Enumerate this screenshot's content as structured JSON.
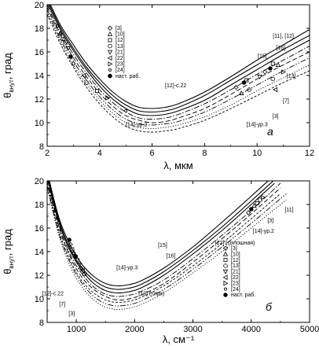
{
  "chart_data": [
    {
      "type": "line",
      "panel_label": "a",
      "xlabel": "λ, мкм",
      "ylabel_main": "θ",
      "ylabel_sub": "внут",
      "ylabel_unit": ", град",
      "xlim": [
        2,
        12
      ],
      "ylim": [
        8,
        20
      ],
      "xticks": [
        2,
        4,
        6,
        8,
        10,
        12
      ],
      "yticks": [
        8,
        10,
        12,
        14,
        16,
        18,
        20
      ],
      "legend_position": "top-left",
      "legend": [
        {
          "label": "[3]",
          "marker": "diamond"
        },
        {
          "label": "[10]",
          "marker": "triangle-up"
        },
        {
          "label": "[12]",
          "marker": "square"
        },
        {
          "label": "[13]",
          "marker": "circle"
        },
        {
          "label": "[21]",
          "marker": "triangle-down"
        },
        {
          "label": "[22]",
          "marker": "triangle-left"
        },
        {
          "label": "[23]",
          "marker": "triangle-right"
        },
        {
          "label": "[24]",
          "marker": "circle-small"
        },
        {
          "label": "наст. раб.",
          "marker": "filled-circle"
        }
      ],
      "series": [
        {
          "id": "c11",
          "style": "solid",
          "x": [
            2.0,
            2.5,
            3.0,
            3.5,
            4.0,
            4.5,
            5.0,
            5.5,
            6.0,
            6.5,
            7.0,
            8.0,
            9.0,
            10.0,
            11.0,
            12.0
          ],
          "y": [
            20.6,
            18.3,
            16.6,
            15.0,
            13.7,
            12.6,
            11.8,
            11.3,
            11.2,
            11.3,
            11.6,
            12.6,
            13.9,
            15.3,
            16.6,
            17.9
          ]
        },
        {
          "id": "c16",
          "style": "solid",
          "x": [
            2.0,
            2.5,
            3.0,
            3.5,
            4.0,
            4.5,
            5.0,
            5.5,
            6.0,
            6.5,
            7.0,
            8.0,
            9.0,
            10.0,
            11.0,
            12.0
          ],
          "y": [
            20.4,
            18.1,
            16.3,
            14.7,
            13.4,
            12.3,
            11.5,
            11.0,
            10.9,
            11.0,
            11.3,
            12.3,
            13.6,
            14.9,
            16.2,
            17.4
          ]
        },
        {
          "id": "c15",
          "style": "solid",
          "x": [
            2.0,
            2.5,
            3.0,
            3.5,
            4.0,
            4.5,
            5.0,
            5.5,
            6.0,
            6.5,
            7.0,
            8.0,
            9.0,
            10.0,
            11.0,
            12.0
          ],
          "y": [
            20.2,
            17.9,
            16.1,
            14.5,
            13.1,
            12.0,
            11.2,
            10.7,
            10.6,
            10.7,
            11.0,
            11.9,
            13.2,
            14.5,
            15.8,
            17.0
          ]
        },
        {
          "id": "c12",
          "style": "dashdot",
          "x": [
            2.0,
            2.5,
            3.0,
            3.5,
            4.0,
            4.5,
            5.0,
            5.5,
            6.0,
            6.5,
            7.0,
            8.0,
            9.0,
            10.0,
            11.0,
            12.0
          ],
          "y": [
            20.0,
            17.6,
            15.8,
            14.2,
            12.8,
            11.7,
            10.9,
            10.4,
            10.3,
            10.4,
            10.7,
            11.6,
            12.8,
            14.1,
            15.3,
            16.5
          ]
        },
        {
          "id": "c13",
          "style": "dashed",
          "x": [
            2.0,
            2.5,
            3.0,
            3.5,
            4.0,
            4.5,
            5.0,
            5.5,
            6.0,
            6.5,
            7.0,
            8.0,
            9.0,
            10.0,
            11.0,
            12.0
          ],
          "y": [
            19.8,
            17.4,
            15.5,
            13.9,
            12.5,
            11.4,
            10.6,
            10.2,
            10.0,
            10.1,
            10.4,
            11.2,
            12.4,
            13.7,
            14.9,
            16.0
          ]
        },
        {
          "id": "c7",
          "style": "dashdotdot",
          "x": [
            2.0,
            2.5,
            3.0,
            3.5,
            4.0,
            4.5,
            5.0,
            5.5,
            6.0,
            6.5,
            7.0,
            8.0,
            9.0,
            10.0,
            11.0,
            12.0
          ],
          "y": [
            19.6,
            17.1,
            15.2,
            13.6,
            12.2,
            11.1,
            10.3,
            9.9,
            9.8,
            9.9,
            10.1,
            10.9,
            12.0,
            13.2,
            14.4,
            15.5
          ]
        },
        {
          "id": "c3",
          "style": "dotted",
          "x": [
            2.0,
            2.5,
            3.0,
            3.5,
            4.0,
            4.5,
            5.0,
            5.5,
            6.0,
            6.5,
            7.0,
            8.0,
            9.0,
            10.0,
            11.0,
            12.0
          ],
          "y": [
            19.4,
            16.9,
            14.9,
            13.3,
            11.9,
            10.8,
            10.0,
            9.6,
            9.5,
            9.6,
            9.8,
            10.5,
            11.5,
            12.7,
            13.8,
            14.9
          ]
        },
        {
          "id": "c14",
          "style": "dashed-short",
          "x": [
            2.0,
            2.5,
            3.0,
            3.5,
            4.0,
            4.5,
            5.0,
            5.5,
            6.0,
            6.5,
            7.0,
            8.0,
            9.0,
            10.0,
            11.0,
            12.0
          ],
          "y": [
            19.2,
            16.7,
            14.7,
            13.0,
            11.6,
            10.5,
            9.7,
            9.3,
            9.2,
            9.3,
            9.5,
            10.2,
            11.2,
            12.3,
            13.4,
            14.4
          ]
        }
      ],
      "points": [
        {
          "x": 2.4,
          "y": 18.2,
          "m": "diamond"
        },
        {
          "x": 2.5,
          "y": 17.6,
          "m": "triangle-up"
        },
        {
          "x": 2.6,
          "y": 17.1,
          "m": "square"
        },
        {
          "x": 2.7,
          "y": 16.8,
          "m": "circle"
        },
        {
          "x": 2.8,
          "y": 16.3,
          "m": "triangle-down"
        },
        {
          "x": 2.9,
          "y": 15.6,
          "m": "filled-circle"
        },
        {
          "x": 3.0,
          "y": 15.0,
          "m": "diamond"
        },
        {
          "x": 3.4,
          "y": 14.0,
          "m": "triangle-left"
        },
        {
          "x": 3.5,
          "y": 13.4,
          "m": "circle"
        },
        {
          "x": 3.9,
          "y": 12.7,
          "m": "square"
        },
        {
          "x": 4.3,
          "y": 12.1,
          "m": "triangle-right"
        },
        {
          "x": 5.0,
          "y": 11.0,
          "m": "circle-small"
        },
        {
          "x": 9.2,
          "y": 13.0,
          "m": "diamond"
        },
        {
          "x": 9.4,
          "y": 12.5,
          "m": "triangle-up"
        },
        {
          "x": 9.5,
          "y": 13.4,
          "m": "filled-circle"
        },
        {
          "x": 9.6,
          "y": 13.6,
          "m": "square"
        },
        {
          "x": 9.7,
          "y": 12.8,
          "m": "circle"
        },
        {
          "x": 10.1,
          "y": 13.9,
          "m": "triangle-down"
        },
        {
          "x": 10.3,
          "y": 14.3,
          "m": "diamond"
        },
        {
          "x": 10.5,
          "y": 14.6,
          "m": "filled-circle"
        },
        {
          "x": 10.6,
          "y": 15.0,
          "m": "square"
        },
        {
          "x": 10.6,
          "y": 13.7,
          "m": "circle"
        },
        {
          "x": 10.7,
          "y": 12.8,
          "m": "triangle-left"
        },
        {
          "x": 10.8,
          "y": 14.9,
          "m": "triangle-up"
        },
        {
          "x": 11.0,
          "y": 14.3,
          "m": "triangle-right"
        }
      ],
      "annotations": [
        {
          "text": "[11], [12]",
          "x": 11.0,
          "y": 17.2
        },
        {
          "text": "[16]",
          "x": 10.9,
          "y": 16.2
        },
        {
          "text": "[15]",
          "x": 10.2,
          "y": 15.5
        },
        {
          "text": "[13]",
          "x": 11.3,
          "y": 13.8
        },
        {
          "text": "[12]-c.22",
          "x": 6.9,
          "y": 13.0
        },
        {
          "text": "[7]",
          "x": 11.1,
          "y": 11.7
        },
        {
          "text": "[3]",
          "x": 10.7,
          "y": 10.4
        },
        {
          "text": "[14]-ур.3",
          "x": 10.0,
          "y": 9.7
        },
        {
          "text": "[14]-ур.2",
          "x": 5.4,
          "y": 9.7
        }
      ]
    },
    {
      "type": "line",
      "panel_label": "б",
      "xlabel": "λ, см⁻¹",
      "ylabel_main": "θ",
      "ylabel_sub": "внут",
      "ylabel_unit": ", град",
      "xlim": [
        500,
        5000
      ],
      "ylim": [
        8,
        20
      ],
      "xticks": [
        1000,
        2000,
        3000,
        4000,
        5000
      ],
      "yticks": [
        8,
        10,
        12,
        14,
        16,
        18,
        20
      ],
      "legend_position": "bottom-right",
      "legend": [
        {
          "label": "[3]",
          "marker": "diamond"
        },
        {
          "label": "[10]",
          "marker": "triangle-up"
        },
        {
          "label": "[12]",
          "marker": "square"
        },
        {
          "label": "[13]",
          "marker": "circle"
        },
        {
          "label": "[21]",
          "marker": "triangle-down"
        },
        {
          "label": "[22]",
          "marker": "triangle-left"
        },
        {
          "label": "[23]",
          "marker": "triangle-right"
        },
        {
          "label": "[24]",
          "marker": "circle-small"
        },
        {
          "label": "наст. раб.",
          "marker": "filled-circle"
        }
      ],
      "series": [
        {
          "id": "c11",
          "style": "solid",
          "x": [
            500,
            700,
            900,
            1100,
            1300,
            1500,
            1700,
            1900,
            2100,
            2500,
            3000,
            3500,
            4000,
            4400
          ],
          "y": [
            20.8,
            16.9,
            14.5,
            12.9,
            11.9,
            11.3,
            11.1,
            11.2,
            11.5,
            12.6,
            14.4,
            16.5,
            18.7,
            20.5
          ]
        },
        {
          "id": "c15",
          "style": "solid",
          "x": [
            500,
            700,
            900,
            1100,
            1300,
            1500,
            1700,
            1900,
            2100,
            2500,
            3000,
            3500,
            4000,
            4400
          ],
          "y": [
            20.6,
            16.7,
            14.2,
            12.6,
            11.6,
            11.0,
            10.8,
            10.9,
            11.2,
            12.3,
            14.1,
            16.1,
            18.3,
            20.1
          ]
        },
        {
          "id": "c16",
          "style": "solid",
          "x": [
            500,
            700,
            900,
            1100,
            1300,
            1500,
            1700,
            1900,
            2100,
            2500,
            3000,
            3500,
            4000,
            4400
          ],
          "y": [
            20.4,
            16.5,
            14.0,
            12.4,
            11.3,
            10.7,
            10.5,
            10.6,
            10.9,
            12.0,
            13.8,
            15.8,
            18.0,
            19.8
          ]
        },
        {
          "id": "c12s",
          "style": "dashdot",
          "x": [
            500,
            700,
            900,
            1100,
            1300,
            1500,
            1700,
            1900,
            2100,
            2500,
            3000,
            3500,
            4000,
            4500
          ],
          "y": [
            20.2,
            16.3,
            13.7,
            12.1,
            11.0,
            10.4,
            10.2,
            10.3,
            10.6,
            11.6,
            13.4,
            15.4,
            17.5,
            19.8
          ]
        },
        {
          "id": "c13",
          "style": "dashed",
          "x": [
            500,
            700,
            900,
            1100,
            1300,
            1500,
            1700,
            1900,
            2100,
            2500,
            3000,
            3500,
            4000,
            4500
          ],
          "y": [
            20.0,
            16.1,
            13.5,
            11.8,
            10.8,
            10.2,
            9.9,
            10.0,
            10.3,
            11.3,
            13.1,
            15.1,
            17.2,
            19.4
          ]
        },
        {
          "id": "c14",
          "style": "dashed-short",
          "x": [
            500,
            700,
            900,
            1100,
            1300,
            1500,
            1700,
            1900,
            2100,
            2500,
            3000,
            3500,
            4000,
            4500
          ],
          "y": [
            19.8,
            15.8,
            13.2,
            11.5,
            10.5,
            9.9,
            9.7,
            9.8,
            10.1,
            11.1,
            12.8,
            14.7,
            16.8,
            18.9
          ]
        },
        {
          "id": "c7",
          "style": "dashdotdot",
          "x": [
            500,
            700,
            900,
            1100,
            1300,
            1500,
            1700,
            1900,
            2100,
            2500,
            3000,
            3500,
            4000,
            4600
          ],
          "y": [
            19.6,
            15.6,
            13.0,
            11.3,
            10.2,
            9.6,
            9.4,
            9.5,
            9.8,
            10.8,
            12.5,
            14.4,
            16.4,
            18.9
          ]
        },
        {
          "id": "c3",
          "style": "dotted",
          "x": [
            500,
            700,
            900,
            1100,
            1300,
            1500,
            1700,
            1900,
            2100,
            2500,
            3000,
            3500,
            4000,
            4600
          ],
          "y": [
            19.4,
            15.4,
            12.7,
            11.0,
            9.9,
            9.3,
            9.1,
            9.2,
            9.5,
            10.5,
            12.2,
            14.0,
            16.0,
            18.4
          ]
        }
      ],
      "points": [
        {
          "x": 880,
          "y": 15.0,
          "m": "filled-circle"
        },
        {
          "x": 900,
          "y": 14.6,
          "m": "diamond"
        },
        {
          "x": 930,
          "y": 14.2,
          "m": "square"
        },
        {
          "x": 960,
          "y": 13.9,
          "m": "triangle-up"
        },
        {
          "x": 990,
          "y": 13.6,
          "m": "filled-circle"
        },
        {
          "x": 1020,
          "y": 13.3,
          "m": "circle"
        },
        {
          "x": 1050,
          "y": 12.9,
          "m": "triangle-down"
        },
        {
          "x": 1080,
          "y": 12.6,
          "m": "diamond"
        },
        {
          "x": 1110,
          "y": 12.4,
          "m": "triangle-left"
        },
        {
          "x": 1140,
          "y": 12.1,
          "m": "square"
        },
        {
          "x": 3950,
          "y": 17.3,
          "m": "diamond"
        },
        {
          "x": 4000,
          "y": 17.6,
          "m": "filled-circle"
        },
        {
          "x": 4050,
          "y": 17.9,
          "m": "triangle-up"
        },
        {
          "x": 4100,
          "y": 18.1,
          "m": "square"
        },
        {
          "x": 4150,
          "y": 18.4,
          "m": "circle"
        },
        {
          "x": 4200,
          "y": 18.6,
          "m": "triangle-right"
        }
      ],
      "annotations": [
        {
          "text": "[11]",
          "x": 4650,
          "y": 17.4
        },
        {
          "text": "[3]",
          "x": 4330,
          "y": 16.5
        },
        {
          "text": "[14]-ур.2",
          "x": 4210,
          "y": 15.6
        },
        {
          "text": "[12] (сплошная)",
          "x": 3720,
          "y": 14.6
        },
        {
          "text": "[15]",
          "x": 2480,
          "y": 14.4
        },
        {
          "text": "[16]",
          "x": 2620,
          "y": 13.5
        },
        {
          "text": "[14]-ур.3",
          "x": 1870,
          "y": 12.5
        },
        {
          "text": "[13] (тире)",
          "x": 2290,
          "y": 10.3
        },
        {
          "text": "[12]-c.22",
          "x": 600,
          "y": 10.3
        },
        {
          "text": "[7]",
          "x": 760,
          "y": 9.4
        },
        {
          "text": "[3]",
          "x": 920,
          "y": 8.6
        }
      ]
    }
  ]
}
